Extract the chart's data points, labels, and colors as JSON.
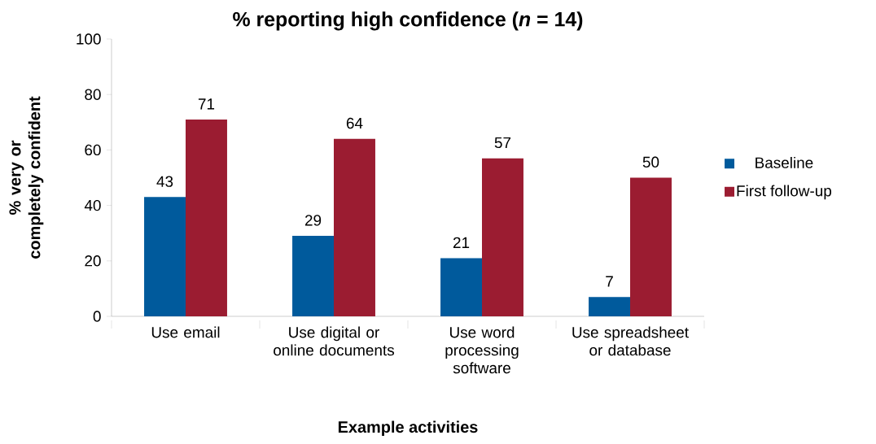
{
  "chart_data": {
    "type": "bar",
    "title": "% reporting high confidence (*n* = 14)",
    "xlabel": "Example activities",
    "ylabel": "% very or completely confident",
    "categories": [
      "Use email",
      "Use digital or online documents",
      "Use word processing software",
      "Use spreadsheet or database"
    ],
    "series": [
      {
        "name": "Baseline",
        "color": "#005a9c",
        "values": [
          43,
          29,
          21,
          7
        ]
      },
      {
        "name": "First follow-up",
        "color": "#9b1c31",
        "values": [
          71,
          64,
          57,
          50
        ]
      }
    ],
    "ylim": [
      0,
      100
    ],
    "yticks": [
      0,
      20,
      40,
      60,
      80,
      100
    ],
    "data_labels": true,
    "legend": "right",
    "grid": false
  }
}
